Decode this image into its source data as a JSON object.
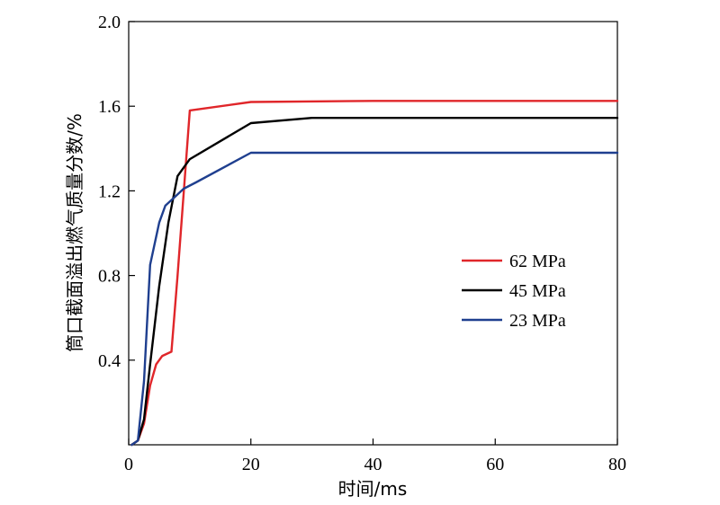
{
  "chart_data": {
    "type": "line",
    "title": "",
    "xlabel": "时间/ms",
    "ylabel": "筒口截面溢出燃气质量分数/%",
    "xlim": [
      0,
      80
    ],
    "ylim": [
      0,
      2.0
    ],
    "xticks": [
      0,
      20,
      40,
      60,
      80
    ],
    "xtick_labels": [
      "0",
      "20",
      "40",
      "60",
      "80"
    ],
    "yticks": [
      0.4,
      0.8,
      1.2,
      1.6,
      2.0
    ],
    "ytick_labels": [
      "0.4",
      "0.8",
      "1.2",
      "1.6",
      "2.0"
    ],
    "grid": false,
    "legend_position": "center-right",
    "series": [
      {
        "name": "62 MPa",
        "color": "#e0262a",
        "x": [
          0.5,
          1.5,
          2.5,
          3.5,
          4.5,
          5.5,
          7.0,
          8.0,
          10.0,
          20.0,
          40.0,
          60.0,
          80.0
        ],
        "y": [
          0.0,
          0.02,
          0.1,
          0.28,
          0.38,
          0.42,
          0.44,
          0.8,
          1.58,
          1.62,
          1.625,
          1.625,
          1.625
        ]
      },
      {
        "name": "45 MPa",
        "color": "#000000",
        "x": [
          0.5,
          1.5,
          2.5,
          3.5,
          5.0,
          6.5,
          8.0,
          10.0,
          20.0,
          30.0,
          40.0,
          60.0,
          80.0
        ],
        "y": [
          0.0,
          0.02,
          0.12,
          0.38,
          0.75,
          1.05,
          1.27,
          1.35,
          1.52,
          1.545,
          1.545,
          1.545,
          1.545
        ]
      },
      {
        "name": "23 MPa",
        "color": "#1f3f8f",
        "x": [
          0.5,
          1.5,
          2.5,
          3.5,
          5.0,
          6.0,
          7.5,
          9.0,
          11.0,
          20.0,
          40.0,
          60.0,
          80.0
        ],
        "y": [
          0.0,
          0.02,
          0.3,
          0.85,
          1.05,
          1.13,
          1.17,
          1.21,
          1.24,
          1.38,
          1.38,
          1.38,
          1.38
        ]
      }
    ]
  }
}
